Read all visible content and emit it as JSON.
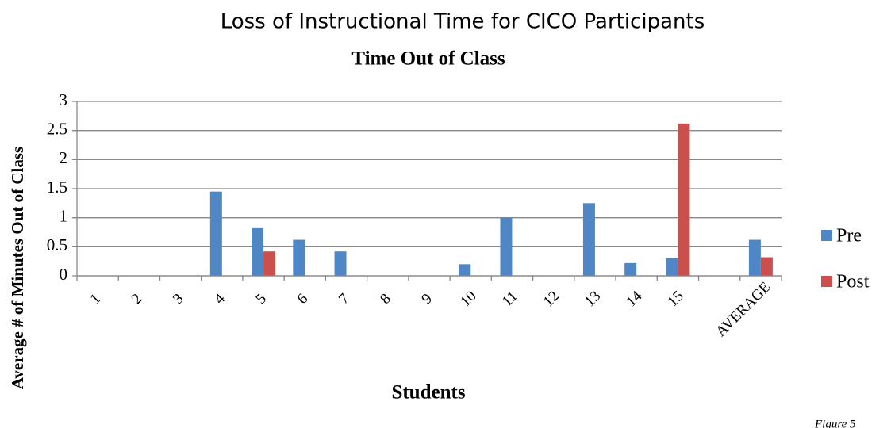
{
  "chart_data": {
    "type": "bar",
    "title": "Loss of Instructional Time for CICO Participants",
    "subtitle": "Time Out of Class",
    "x_label": "Students",
    "y_label": "Average # of Minutes Out of Class",
    "annotation": "Figure 5",
    "categories": [
      "1",
      "2",
      "3",
      "4",
      "5",
      "6",
      "7",
      "8",
      "9",
      "10",
      "11",
      "12",
      "13",
      "14",
      "15",
      null,
      "AVERAGE"
    ],
    "series": [
      {
        "name": "Pre",
        "color": "#4f86c6",
        "values": [
          0,
          0,
          0,
          1.45,
          0.82,
          0.62,
          0.42,
          0,
          0,
          0.2,
          1.0,
          0,
          1.25,
          0.22,
          0.3,
          null,
          0.62
        ]
      },
      {
        "name": "Post",
        "color": "#c9504c",
        "values": [
          0,
          0,
          0,
          0,
          0.42,
          0,
          0,
          0,
          0,
          0,
          0,
          0,
          0,
          0,
          2.62,
          null,
          0.32
        ]
      }
    ],
    "ylim": [
      0,
      3
    ],
    "yticks": [
      0,
      0.5,
      1,
      1.5,
      2,
      2.5,
      3
    ],
    "grid": true,
    "legend": "right"
  }
}
